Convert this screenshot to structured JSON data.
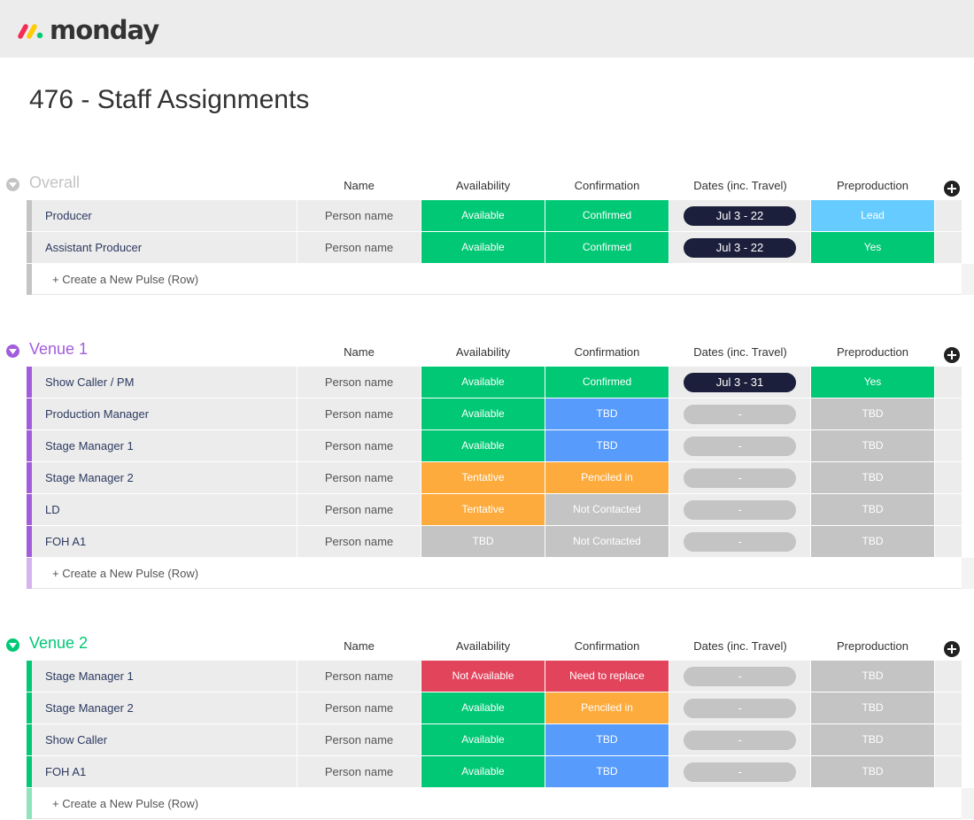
{
  "app": {
    "logo_text": "monday",
    "logo_colors": [
      "#f62b54",
      "#ffcc00",
      "#00ca72"
    ]
  },
  "page": {
    "title": "476 - Staff Assignments"
  },
  "columns": [
    "Name",
    "Availability",
    "Confirmation",
    "Dates (inc. Travel)",
    "Preproduction"
  ],
  "create_label": "+ Create a New Pulse (Row)",
  "status_colors": {
    "green": "#00c875",
    "blue": "#579bfc",
    "light_blue": "#66ccff",
    "orange": "#fdab3d",
    "red": "#e2445c",
    "grey": "#c4c4c4",
    "navy": "#1c1f3b"
  },
  "groups": [
    {
      "title": "Overall",
      "color": "#c4c4c4",
      "create_bar_color": "#c4c4c4",
      "rows": [
        {
          "label": "Producer",
          "person": "Person name",
          "availability": {
            "text": "Available",
            "color": "green"
          },
          "confirmation": {
            "text": "Confirmed",
            "color": "green"
          },
          "dates": {
            "text": "Jul 3 - 22",
            "color": "navy"
          },
          "preproduction": {
            "text": "Lead",
            "color": "light_blue"
          }
        },
        {
          "label": "Assistant Producer",
          "person": "Person name",
          "availability": {
            "text": "Available",
            "color": "green"
          },
          "confirmation": {
            "text": "Confirmed",
            "color": "green"
          },
          "dates": {
            "text": "Jul 3 - 22",
            "color": "navy"
          },
          "preproduction": {
            "text": "Yes",
            "color": "green"
          }
        }
      ]
    },
    {
      "title": "Venue 1",
      "color": "#a25ddc",
      "create_bar_color": "#d5b3ef",
      "rows": [
        {
          "label": "Show Caller / PM",
          "person": "Person name",
          "availability": {
            "text": "Available",
            "color": "green"
          },
          "confirmation": {
            "text": "Confirmed",
            "color": "green"
          },
          "dates": {
            "text": "Jul 3 - 31",
            "color": "navy"
          },
          "preproduction": {
            "text": "Yes",
            "color": "green"
          }
        },
        {
          "label": "Production Manager",
          "person": "Person name",
          "availability": {
            "text": "Available",
            "color": "green"
          },
          "confirmation": {
            "text": "TBD",
            "color": "blue"
          },
          "dates": {
            "text": "-",
            "color": "grey"
          },
          "preproduction": {
            "text": "TBD",
            "color": "grey"
          }
        },
        {
          "label": "Stage Manager 1",
          "person": "Person name",
          "availability": {
            "text": "Available",
            "color": "green"
          },
          "confirmation": {
            "text": "TBD",
            "color": "blue"
          },
          "dates": {
            "text": "-",
            "color": "grey"
          },
          "preproduction": {
            "text": "TBD",
            "color": "grey"
          }
        },
        {
          "label": "Stage Manager 2",
          "person": "Person name",
          "availability": {
            "text": "Tentative",
            "color": "orange"
          },
          "confirmation": {
            "text": "Penciled in",
            "color": "orange"
          },
          "dates": {
            "text": "-",
            "color": "grey"
          },
          "preproduction": {
            "text": "TBD",
            "color": "grey"
          }
        },
        {
          "label": "LD",
          "person": "Person name",
          "availability": {
            "text": "Tentative",
            "color": "orange"
          },
          "confirmation": {
            "text": "Not Contacted",
            "color": "grey"
          },
          "dates": {
            "text": "-",
            "color": "grey"
          },
          "preproduction": {
            "text": "TBD",
            "color": "grey"
          }
        },
        {
          "label": "FOH A1",
          "person": "Person name",
          "availability": {
            "text": "TBD",
            "color": "grey"
          },
          "confirmation": {
            "text": "Not Contacted",
            "color": "grey"
          },
          "dates": {
            "text": "-",
            "color": "grey"
          },
          "preproduction": {
            "text": "TBD",
            "color": "grey"
          }
        }
      ]
    },
    {
      "title": "Venue 2",
      "color": "#00c875",
      "create_bar_color": "#8fe3bd",
      "rows": [
        {
          "label": "Stage Manager 1",
          "person": "Person name",
          "availability": {
            "text": "Not Available",
            "color": "red"
          },
          "confirmation": {
            "text": "Need to replace",
            "color": "red"
          },
          "dates": {
            "text": "-",
            "color": "grey"
          },
          "preproduction": {
            "text": "TBD",
            "color": "grey"
          }
        },
        {
          "label": "Stage Manager 2",
          "person": "Person name",
          "availability": {
            "text": "Available",
            "color": "green"
          },
          "confirmation": {
            "text": "Penciled in",
            "color": "orange"
          },
          "dates": {
            "text": "-",
            "color": "grey"
          },
          "preproduction": {
            "text": "TBD",
            "color": "grey"
          }
        },
        {
          "label": "Show Caller",
          "person": "Person name",
          "availability": {
            "text": "Available",
            "color": "green"
          },
          "confirmation": {
            "text": "TBD",
            "color": "blue"
          },
          "dates": {
            "text": "-",
            "color": "grey"
          },
          "preproduction": {
            "text": "TBD",
            "color": "grey"
          }
        },
        {
          "label": "FOH A1",
          "person": "Person name",
          "availability": {
            "text": "Available",
            "color": "green"
          },
          "confirmation": {
            "text": "TBD",
            "color": "blue"
          },
          "dates": {
            "text": "-",
            "color": "grey"
          },
          "preproduction": {
            "text": "TBD",
            "color": "grey"
          }
        }
      ]
    }
  ]
}
